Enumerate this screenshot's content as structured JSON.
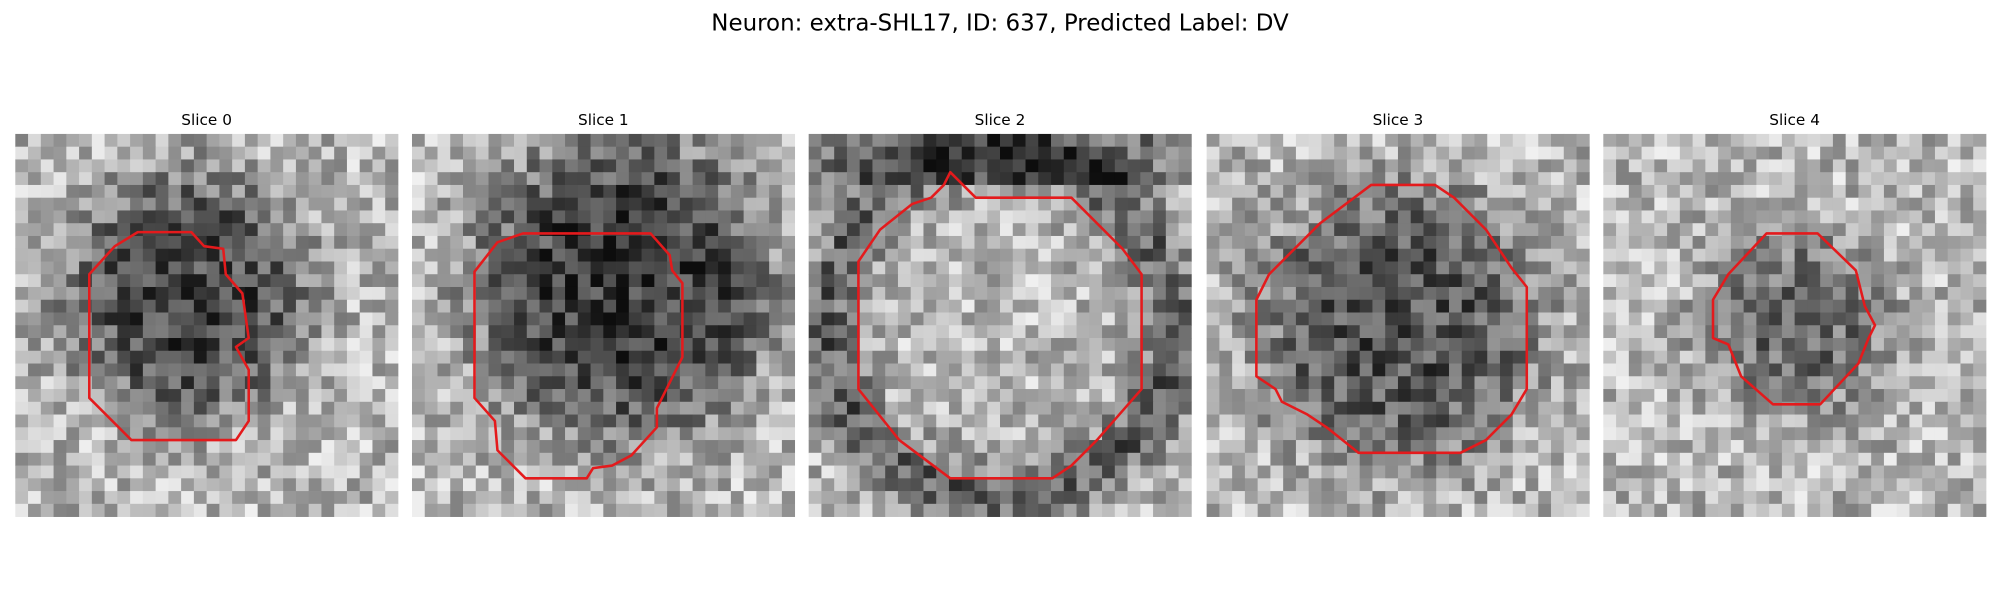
{
  "title": "Neuron: extra-SHL17, ID: 637, Predicted Label: DV",
  "panels": [
    {
      "title": "Slice 0"
    },
    {
      "title": "Slice 1"
    },
    {
      "title": "Slice 2"
    },
    {
      "title": "Slice 3"
    },
    {
      "title": "Slice 4"
    }
  ]
}
